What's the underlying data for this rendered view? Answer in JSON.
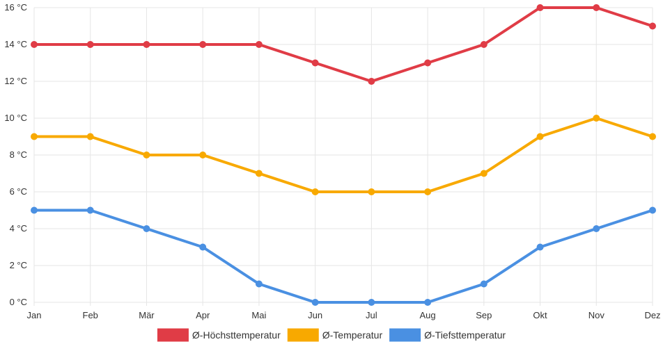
{
  "chart_data": {
    "type": "line",
    "categories": [
      "Jan",
      "Feb",
      "Mär",
      "Apr",
      "Mai",
      "Jun",
      "Jul",
      "Aug",
      "Sep",
      "Okt",
      "Nov",
      "Dez"
    ],
    "series": [
      {
        "name": "Ø-Höchsttemperatur",
        "color": "#e03c46",
        "values": [
          14,
          14,
          14,
          14,
          14,
          13,
          12,
          13,
          14,
          16,
          16,
          15
        ]
      },
      {
        "name": "Ø-Temperatur",
        "color": "#f8a900",
        "values": [
          9,
          9,
          8,
          8,
          7,
          6,
          6,
          6,
          7,
          9,
          10,
          9
        ]
      },
      {
        "name": "Ø-Tiefsttemperatur",
        "color": "#4a90e2",
        "values": [
          5,
          5,
          4,
          3,
          1,
          0,
          0,
          0,
          1,
          3,
          4,
          5
        ]
      }
    ],
    "y_ticks": [
      "0 °C",
      "2 °C",
      "4 °C",
      "6 °C",
      "8 °C",
      "10 °C",
      "12 °C",
      "14 °C",
      "16 °C"
    ],
    "ylim": [
      0,
      16
    ],
    "y_step": 2,
    "grid": true,
    "legend_position": "bottom"
  }
}
